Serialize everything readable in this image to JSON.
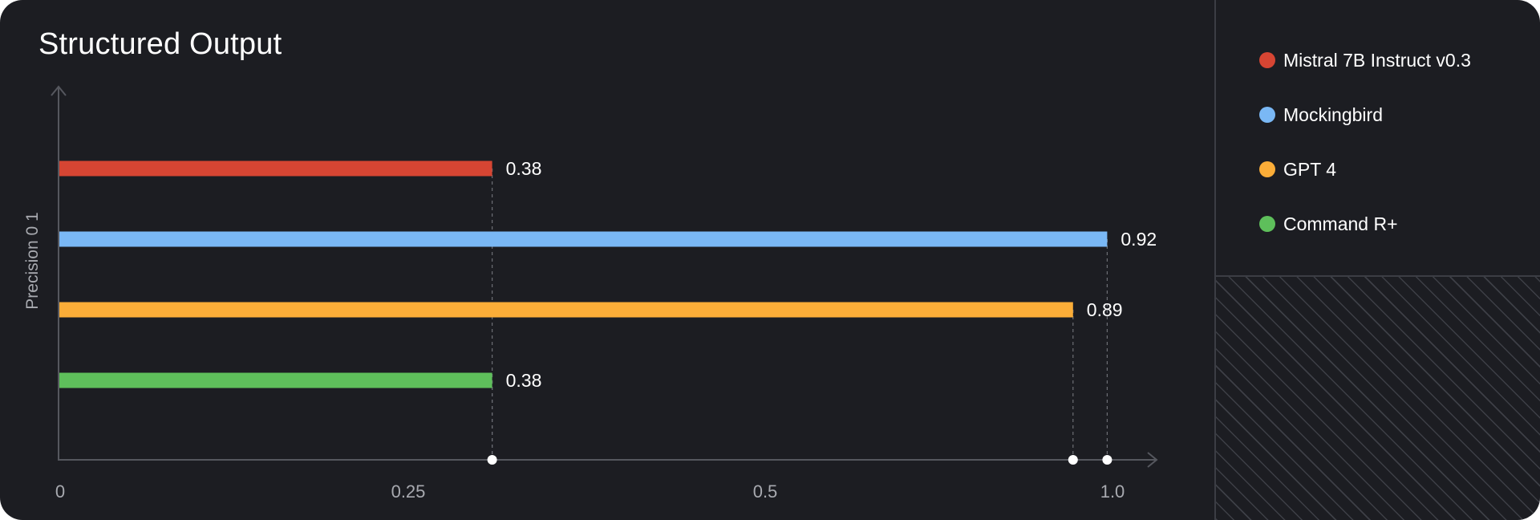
{
  "chart_data": {
    "type": "bar",
    "orientation": "horizontal",
    "title": "Structured Output",
    "xlabel": "",
    "ylabel": "Precision 0 1",
    "xlim": [
      0,
      1.0
    ],
    "x_ticks": [
      "0",
      "0.25",
      "0.5",
      "1.0"
    ],
    "grid": false,
    "legend_position": "right",
    "series": [
      {
        "name": "Mistral 7B Instruct v0.3",
        "value": 0.38,
        "label": "0.38",
        "color": "#d64533"
      },
      {
        "name": "Mockingbird",
        "value": 0.92,
        "label": "0.92",
        "color": "#7ab8f5"
      },
      {
        "name": "GPT 4",
        "value": 0.89,
        "label": "0.89",
        "color": "#fbad38"
      },
      {
        "name": "Command R+",
        "value": 0.38,
        "label": "0.38",
        "color": "#5ebf5b"
      }
    ]
  },
  "colors": {
    "background": "#1c1d22",
    "axis": "#55575e",
    "text": "#ffffff",
    "tick_text": "#a8aab0",
    "guide": "#6c6e75"
  }
}
